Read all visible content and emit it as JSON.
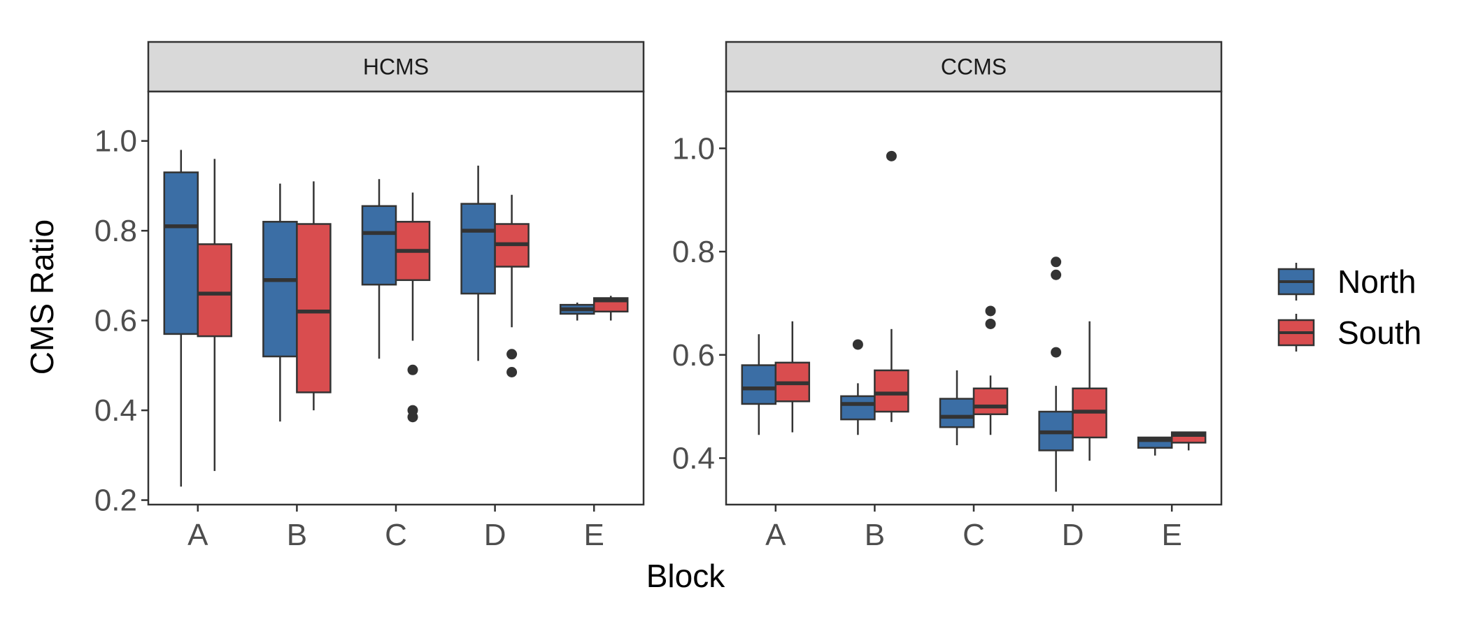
{
  "chart_data": {
    "type": "boxplot",
    "xlabel": "Block",
    "ylabel": "CMS Ratio",
    "categories": [
      "A",
      "B",
      "C",
      "D",
      "E"
    ],
    "legend": {
      "position": "right",
      "items": [
        {
          "name": "North",
          "color": "#3b6ea5"
        },
        {
          "name": "South",
          "color": "#d94d4f"
        }
      ]
    },
    "grid": false,
    "panels": [
      {
        "strip_label": "HCMS",
        "ylim": [
          0.19,
          1.11
        ],
        "yticks": [
          0.2,
          0.4,
          0.6,
          0.8,
          1.0
        ],
        "ytick_labels": [
          "0.2",
          "0.4",
          "0.6",
          "0.8",
          "1.0"
        ],
        "series": [
          {
            "name": "North",
            "boxes": [
              {
                "category": "A",
                "min": 0.23,
                "q1": 0.57,
                "median": 0.81,
                "q3": 0.93,
                "max": 0.98,
                "outliers": []
              },
              {
                "category": "B",
                "min": 0.375,
                "q1": 0.52,
                "median": 0.69,
                "q3": 0.82,
                "max": 0.905,
                "outliers": []
              },
              {
                "category": "C",
                "min": 0.515,
                "q1": 0.68,
                "median": 0.795,
                "q3": 0.855,
                "max": 0.915,
                "outliers": []
              },
              {
                "category": "D",
                "min": 0.51,
                "q1": 0.66,
                "median": 0.8,
                "q3": 0.86,
                "max": 0.945,
                "outliers": []
              },
              {
                "category": "E",
                "min": 0.6,
                "q1": 0.615,
                "median": 0.625,
                "q3": 0.635,
                "max": 0.64,
                "outliers": []
              }
            ]
          },
          {
            "name": "South",
            "boxes": [
              {
                "category": "A",
                "min": 0.265,
                "q1": 0.565,
                "median": 0.66,
                "q3": 0.77,
                "max": 0.96,
                "outliers": []
              },
              {
                "category": "B",
                "min": 0.4,
                "q1": 0.44,
                "median": 0.62,
                "q3": 0.815,
                "max": 0.91,
                "outliers": []
              },
              {
                "category": "C",
                "min": 0.555,
                "q1": 0.69,
                "median": 0.755,
                "q3": 0.82,
                "max": 0.885,
                "outliers": [
                  0.49,
                  0.4,
                  0.385
                ]
              },
              {
                "category": "D",
                "min": 0.585,
                "q1": 0.72,
                "median": 0.77,
                "q3": 0.815,
                "max": 0.88,
                "outliers": [
                  0.525,
                  0.485
                ]
              },
              {
                "category": "E",
                "min": 0.6,
                "q1": 0.62,
                "median": 0.645,
                "q3": 0.65,
                "max": 0.655,
                "outliers": []
              }
            ]
          }
        ]
      },
      {
        "strip_label": "CCMS",
        "ylim": [
          0.31,
          1.11
        ],
        "yticks": [
          0.4,
          0.6,
          0.8,
          1.0
        ],
        "ytick_labels": [
          "0.4",
          "0.6",
          "0.8",
          "1.0"
        ],
        "series": [
          {
            "name": "North",
            "boxes": [
              {
                "category": "A",
                "min": 0.445,
                "q1": 0.505,
                "median": 0.535,
                "q3": 0.58,
                "max": 0.64,
                "outliers": []
              },
              {
                "category": "B",
                "min": 0.445,
                "q1": 0.475,
                "median": 0.505,
                "q3": 0.52,
                "max": 0.545,
                "outliers": [
                  0.62
                ]
              },
              {
                "category": "C",
                "min": 0.425,
                "q1": 0.46,
                "median": 0.48,
                "q3": 0.515,
                "max": 0.57,
                "outliers": []
              },
              {
                "category": "D",
                "min": 0.335,
                "q1": 0.415,
                "median": 0.45,
                "q3": 0.49,
                "max": 0.54,
                "outliers": [
                  0.78,
                  0.755,
                  0.605
                ]
              },
              {
                "category": "E",
                "min": 0.405,
                "q1": 0.42,
                "median": 0.435,
                "q3": 0.44,
                "max": 0.44,
                "outliers": []
              }
            ]
          },
          {
            "name": "South",
            "boxes": [
              {
                "category": "A",
                "min": 0.45,
                "q1": 0.51,
                "median": 0.545,
                "q3": 0.585,
                "max": 0.665,
                "outliers": []
              },
              {
                "category": "B",
                "min": 0.47,
                "q1": 0.49,
                "median": 0.525,
                "q3": 0.57,
                "max": 0.65,
                "outliers": [
                  0.985
                ]
              },
              {
                "category": "C",
                "min": 0.445,
                "q1": 0.485,
                "median": 0.5,
                "q3": 0.535,
                "max": 0.56,
                "outliers": [
                  0.685,
                  0.66
                ]
              },
              {
                "category": "D",
                "min": 0.395,
                "q1": 0.44,
                "median": 0.49,
                "q3": 0.535,
                "max": 0.665,
                "outliers": []
              },
              {
                "category": "E",
                "min": 0.415,
                "q1": 0.43,
                "median": 0.445,
                "q3": 0.45,
                "max": 0.45,
                "outliers": []
              }
            ]
          }
        ]
      }
    ]
  }
}
